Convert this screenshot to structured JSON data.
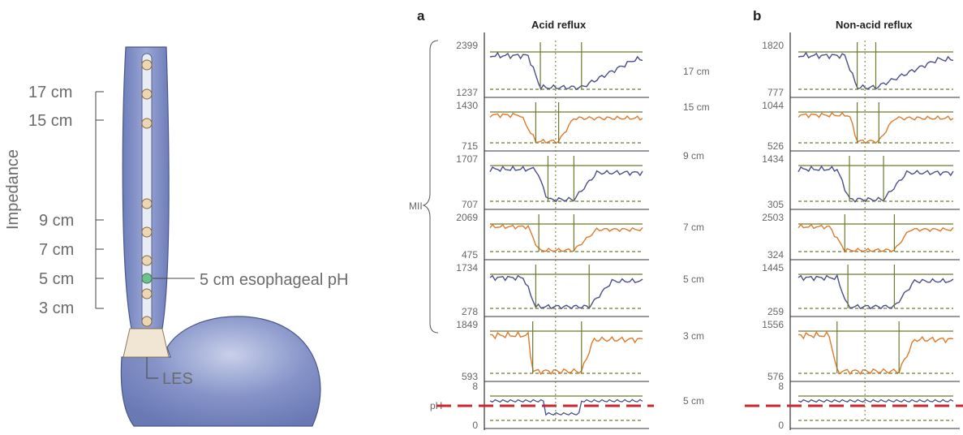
{
  "colors": {
    "esophagus": "#7f8fc4",
    "stomach": "#7584bf",
    "les": "#f1e6d4",
    "catheter": "#e8ecf4",
    "sensor": "#ecd7b5",
    "ph_sensor": "#6cc28a",
    "olive": "#6e7a2e",
    "ph_line": "#c8282d",
    "trace_blue": "#4a4f8c",
    "trace_orange": "#e07a2b"
  },
  "left": {
    "impedance_label": "Impedance",
    "levels": [
      "17 cm",
      "15 cm",
      "9 cm",
      "7 cm",
      "5 cm",
      "3 cm"
    ],
    "ph_label": "5 cm esophageal pH",
    "les_label": "LES"
  },
  "panels": {
    "a": {
      "letter": "a",
      "title": "Acid reflux",
      "mii_label": "MII",
      "ph_label": "pH",
      "ph_scale": {
        "max": "8",
        "min": "0"
      },
      "channels": [
        {
          "level": "17 cm",
          "max": "2399",
          "min": "1237"
        },
        {
          "level": "15 cm",
          "max": "1430",
          "min": "715"
        },
        {
          "level": "9 cm",
          "max": "1707",
          "min": "707"
        },
        {
          "level": "7 cm",
          "max": "2069",
          "min": "475"
        },
        {
          "level": "5 cm",
          "max": "1734",
          "min": "278"
        },
        {
          "level": "3 cm",
          "max": "1849",
          "min": "593"
        }
      ],
      "ph_channel_label": "5 cm"
    },
    "b": {
      "letter": "b",
      "title": "Non-acid reflux",
      "ph_scale": {
        "max": "8",
        "min": "0"
      },
      "channels": [
        {
          "max": "1820",
          "min": "777"
        },
        {
          "max": "1044",
          "min": "526"
        },
        {
          "max": "1434",
          "min": "305"
        },
        {
          "max": "2503",
          "min": "324"
        },
        {
          "max": "1445",
          "min": "259"
        },
        {
          "max": "1556",
          "min": "576"
        }
      ]
    }
  }
}
